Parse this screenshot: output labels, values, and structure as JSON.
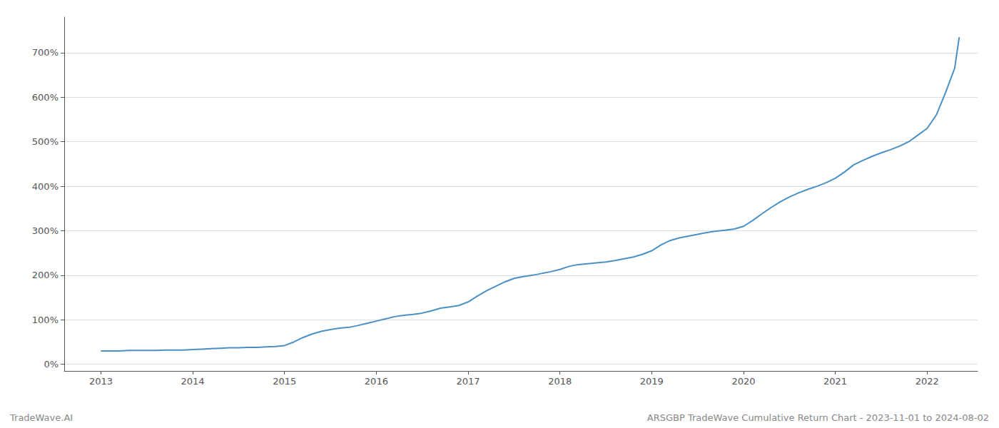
{
  "chart_data": {
    "type": "line",
    "annotations": [
      "TradeWave.AI",
      "ARSGBP TradeWave Cumulative Return Chart - 2023-11-01 to 2024-08-02"
    ],
    "color": "#4a90c4",
    "grid": true,
    "xlim": [
      2012.6,
      2022.55
    ],
    "xticks": [
      2013,
      2014,
      2015,
      2016,
      2017,
      2018,
      2019,
      2020,
      2021,
      2022
    ],
    "ylim": [
      -15,
      780
    ],
    "yticks": [
      {
        "value": 0,
        "label": "0%"
      },
      {
        "value": 100,
        "label": "100%"
      },
      {
        "value": 200,
        "label": "200%"
      },
      {
        "value": 300,
        "label": "300%"
      },
      {
        "value": 400,
        "label": "400%"
      },
      {
        "value": 500,
        "label": "500%"
      },
      {
        "value": 600,
        "label": "600%"
      },
      {
        "value": 700,
        "label": "700%"
      }
    ],
    "x": [
      2013.0,
      2013.1,
      2013.2,
      2013.3,
      2013.4,
      2013.5,
      2013.6,
      2013.7,
      2013.8,
      2013.9,
      2014.0,
      2014.1,
      2014.2,
      2014.3,
      2014.4,
      2014.5,
      2014.6,
      2014.7,
      2014.8,
      2014.9,
      2015.0,
      2015.1,
      2015.2,
      2015.3,
      2015.4,
      2015.5,
      2015.6,
      2015.7,
      2015.8,
      2015.9,
      2016.0,
      2016.1,
      2016.2,
      2016.3,
      2016.4,
      2016.5,
      2016.6,
      2016.7,
      2016.8,
      2016.9,
      2017.0,
      2017.1,
      2017.2,
      2017.3,
      2017.4,
      2017.5,
      2017.6,
      2017.7,
      2017.8,
      2017.9,
      2018.0,
      2018.1,
      2018.2,
      2018.3,
      2018.4,
      2018.5,
      2018.6,
      2018.7,
      2018.8,
      2018.9,
      2019.0,
      2019.1,
      2019.2,
      2019.3,
      2019.4,
      2019.5,
      2019.6,
      2019.7,
      2019.8,
      2019.9,
      2020.0,
      2020.1,
      2020.2,
      2020.3,
      2020.4,
      2020.5,
      2020.6,
      2020.7,
      2020.8,
      2020.9,
      2021.0,
      2021.1,
      2021.2,
      2021.3,
      2021.4,
      2021.5,
      2021.6,
      2021.7,
      2021.8,
      2021.9,
      2022.0,
      2022.1,
      2022.2,
      2022.3,
      2022.35
    ],
    "values": [
      30,
      30,
      30,
      31,
      31,
      31,
      31,
      32,
      32,
      32,
      33,
      34,
      35,
      36,
      37,
      37,
      38,
      38,
      39,
      40,
      42,
      50,
      60,
      68,
      74,
      78,
      81,
      83,
      87,
      92,
      97,
      102,
      107,
      110,
      112,
      115,
      120,
      126,
      129,
      132,
      140,
      153,
      165,
      175,
      185,
      193,
      197,
      200,
      204,
      208,
      213,
      220,
      224,
      226,
      228,
      230,
      233,
      237,
      241,
      247,
      255,
      268,
      278,
      284,
      288,
      292,
      296,
      299,
      301,
      304,
      310,
      323,
      338,
      352,
      365,
      376,
      385,
      393,
      400,
      408,
      418,
      432,
      448,
      458,
      467,
      475,
      482,
      490,
      500,
      515,
      530,
      560,
      610,
      665,
      735
    ]
  }
}
